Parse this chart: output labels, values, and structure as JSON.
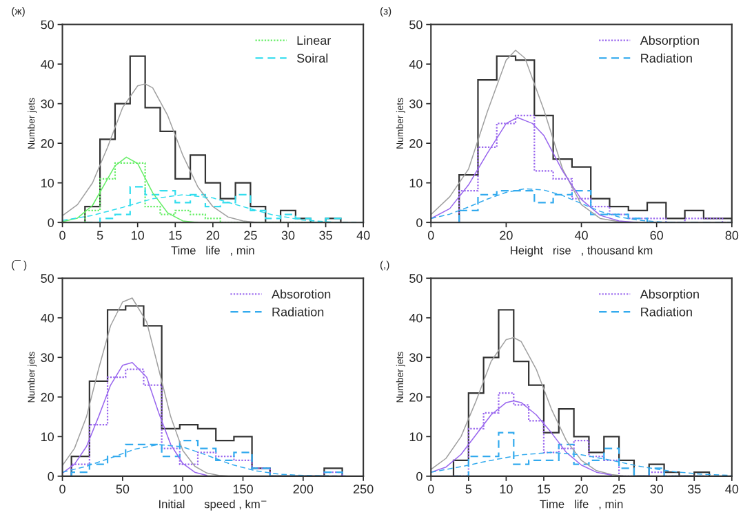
{
  "chart_data": [
    {
      "type": "histogram",
      "title": "(ж)",
      "xlabel": "Time   life   , min",
      "ylabel": "Number jets",
      "bins": [
        3,
        5,
        7,
        9,
        11,
        13,
        15,
        17,
        19,
        21,
        23,
        25,
        27,
        29,
        31,
        33,
        35,
        37
      ],
      "xlim": [
        0,
        40
      ],
      "ylim": [
        0,
        50
      ],
      "xticks": [
        0,
        5,
        10,
        15,
        20,
        25,
        30,
        35,
        40
      ],
      "yticks": [
        0,
        10,
        20,
        30,
        40,
        50
      ],
      "legend": "top right",
      "series": [
        {
          "color": "#333333",
          "line_style": "solid",
          "values": [
            4,
            21,
            30,
            42,
            29,
            23,
            11,
            17,
            10,
            6,
            10,
            4,
            0,
            3,
            1,
            0,
            1
          ]
        },
        {
          "name": "Linear",
          "color": "#66ee66",
          "line_style": "dotted",
          "values": [
            3,
            11,
            15,
            15,
            4,
            2,
            3,
            2,
            1,
            0,
            0,
            0,
            0,
            0,
            0,
            0,
            0
          ]
        },
        {
          "name": "Soiral",
          "color": "#33ddee",
          "line_style": "dashed",
          "values": [
            0,
            1,
            2,
            9,
            7,
            8,
            5,
            7,
            4,
            5,
            7,
            3,
            1,
            2,
            1,
            0,
            1
          ]
        },
        {
          "type": "line",
          "color": "#a0a0a0",
          "line_style": "solid",
          "x": [
            0,
            2,
            4,
            6,
            8,
            10,
            11,
            12,
            14,
            16,
            18,
            20,
            22,
            24,
            26
          ],
          "values": [
            1.7,
            4.5,
            10,
            19,
            29,
            34.5,
            35,
            34,
            27,
            17,
            9,
            4,
            1.4,
            0.4,
            0
          ]
        },
        {
          "type": "line",
          "color": "#66ee66",
          "line_style": "solid",
          "x": [
            0,
            2,
            4,
            6,
            7,
            8.5,
            10,
            12,
            14,
            16,
            18
          ],
          "values": [
            0.2,
            1.1,
            4.3,
            11,
            14.3,
            16.5,
            14.9,
            7.5,
            2.4,
            0.4,
            0
          ]
        },
        {
          "type": "line",
          "color": "#33ddee",
          "line_style": "dashed",
          "x": [
            0,
            4,
            8,
            12,
            16,
            20,
            24,
            28,
            32,
            36,
            40
          ],
          "values": [
            0.5,
            1.8,
            3.8,
            6,
            7,
            6.2,
            4,
            1.9,
            0.6,
            0.1,
            0
          ]
        }
      ]
    },
    {
      "type": "histogram",
      "title": "(з)",
      "xlabel": "Height   rise   , thousand km",
      "ylabel": "Number jets",
      "bins": [
        7.5,
        12.5,
        17.5,
        22.5,
        27.5,
        32.5,
        37.5,
        42.5,
        47.5,
        52.5,
        57.5,
        62.5,
        67.5,
        72.5,
        77.5,
        80
      ],
      "xlim": [
        0,
        80
      ],
      "ylim": [
        0,
        50
      ],
      "xticks": [
        0,
        20,
        40,
        60,
        80
      ],
      "yticks": [
        0,
        10,
        20,
        30,
        40,
        50
      ],
      "legend": "top right",
      "series": [
        {
          "color": "#333333",
          "line_style": "solid",
          "values": [
            12,
            36,
            42,
            41,
            27,
            16,
            14,
            6,
            4,
            3,
            5,
            1,
            3,
            1,
            1
          ]
        },
        {
          "name": "Absorption",
          "color": "#9966ee",
          "line_style": "dotted",
          "values": [
            8,
            19,
            25,
            27,
            13,
            11,
            6,
            4,
            2,
            1,
            1,
            0,
            1,
            1,
            0
          ]
        },
        {
          "name": "Radiation",
          "color": "#33aaee",
          "line_style": "dashed",
          "values": [
            3,
            7,
            8,
            8,
            5,
            7,
            8,
            2,
            2,
            1,
            0,
            0,
            0,
            0,
            0
          ]
        },
        {
          "type": "line",
          "color": "#a0a0a0",
          "line_style": "solid",
          "x": [
            0,
            5,
            10,
            15,
            20,
            22.5,
            25,
            30,
            35,
            40,
            45,
            50,
            55
          ],
          "values": [
            2,
            6.5,
            13.5,
            28,
            41,
            43.5,
            41.5,
            28.5,
            13.5,
            4.5,
            1,
            0.2,
            0
          ]
        },
        {
          "type": "line",
          "color": "#9966ee",
          "line_style": "solid",
          "x": [
            0,
            5,
            10,
            15,
            20,
            23,
            27,
            30,
            35,
            40,
            45,
            50,
            55
          ],
          "values": [
            1,
            3.5,
            9.5,
            17.5,
            25,
            26.5,
            25,
            22,
            13,
            5.8,
            1.8,
            0.4,
            0
          ]
        },
        {
          "type": "line",
          "color": "#33aaee",
          "line_style": "dashed",
          "x": [
            0,
            5,
            10,
            15,
            20,
            25,
            30,
            35,
            40,
            45,
            50,
            55,
            60,
            65
          ],
          "values": [
            1,
            2.1,
            3.9,
            5.9,
            7.6,
            8.5,
            8.2,
            6.8,
            4.8,
            2.8,
            1.4,
            0.6,
            0.2,
            0
          ]
        }
      ]
    },
    {
      "type": "histogram",
      "title": "(¯ )",
      "xlabel": "Initial      speed , km$^{−}$",
      "ylabel": "Number jets",
      "bins": [
        7.5,
        22.5,
        37.5,
        52.5,
        67.5,
        82.5,
        97.5,
        112.5,
        127.5,
        142.5,
        157.5,
        172.5,
        187.5,
        202.5,
        217.5,
        232.5
      ],
      "xlim": [
        0,
        250
      ],
      "ylim": [
        0,
        50
      ],
      "xticks": [
        0,
        50,
        100,
        150,
        200,
        250
      ],
      "yticks": [
        0,
        10,
        20,
        30,
        40,
        50
      ],
      "legend": "top right",
      "series": [
        {
          "color": "#333333",
          "line_style": "solid",
          "values": [
            5,
            24,
            42,
            43,
            38,
            12,
            13,
            12,
            9,
            10,
            2,
            0,
            0,
            0,
            2
          ]
        },
        {
          "name": "Absorotion",
          "color": "#9966ee",
          "line_style": "dotted",
          "values": [
            3,
            13,
            25,
            27,
            23,
            7,
            3,
            6,
            5,
            4,
            2,
            0,
            0,
            0,
            1
          ]
        },
        {
          "name": "Radiation",
          "color": "#33aaee",
          "line_style": "dashed",
          "values": [
            1,
            3,
            5,
            8,
            8,
            5,
            9,
            7,
            4,
            6,
            2,
            0,
            0,
            0,
            1
          ]
        },
        {
          "type": "line",
          "color": "#a0a0a0",
          "line_style": "solid",
          "x": [
            0,
            10,
            20,
            30,
            40,
            50,
            58,
            70,
            80,
            90,
            100,
            110,
            120,
            130,
            140
          ],
          "values": [
            2.7,
            7,
            15,
            27,
            38,
            44,
            45,
            39,
            27,
            15,
            6.5,
            2.5,
            0.8,
            0.2,
            0
          ]
        },
        {
          "type": "line",
          "color": "#9966ee",
          "line_style": "solid",
          "x": [
            0,
            10,
            20,
            30,
            40,
            50,
            58,
            70,
            80,
            90,
            100,
            110,
            120
          ],
          "values": [
            0.8,
            3,
            7.5,
            15,
            23,
            28,
            28.7,
            25,
            16,
            8,
            3.2,
            1,
            0.2
          ]
        },
        {
          "type": "line",
          "color": "#33aaee",
          "line_style": "dashed",
          "x": [
            0,
            20,
            40,
            60,
            80,
            100,
            120,
            140,
            160,
            180,
            200,
            220,
            250
          ],
          "values": [
            1,
            2.5,
            4.6,
            6.8,
            8,
            7.4,
            5.3,
            3,
            1.4,
            0.5,
            0.2,
            0.1,
            0
          ]
        }
      ]
    },
    {
      "type": "histogram",
      "title": "(,)",
      "xlabel": "Time   life   , min",
      "ylabel": "Number jets",
      "bins": [
        3,
        5,
        7,
        9,
        11,
        13,
        15,
        17,
        19,
        21,
        23,
        25,
        27,
        29,
        31,
        33,
        35,
        37
      ],
      "xlim": [
        0,
        40
      ],
      "ylim": [
        0,
        50
      ],
      "xticks": [
        0,
        5,
        10,
        15,
        20,
        25,
        30,
        35,
        40
      ],
      "yticks": [
        0,
        10,
        20,
        30,
        40,
        50
      ],
      "legend": "top right",
      "series": [
        {
          "color": "#333333",
          "line_style": "solid",
          "values": [
            4,
            21,
            30,
            42,
            29,
            23,
            11,
            17,
            10,
            6,
            10,
            4,
            0,
            3,
            1,
            0,
            1
          ]
        },
        {
          "name": "Absorption",
          "color": "#9966ee",
          "line_style": "dotted",
          "values": [
            0,
            12,
            16,
            21,
            18,
            14,
            6,
            7,
            9,
            5,
            4,
            0,
            0,
            1,
            0,
            0,
            0
          ]
        },
        {
          "name": "Radiation",
          "color": "#33aaee",
          "line_style": "dashed",
          "values": [
            0,
            5,
            5,
            11,
            3,
            4,
            4,
            8,
            3,
            4,
            7,
            2,
            0,
            2,
            0,
            0,
            0
          ]
        },
        {
          "type": "line",
          "color": "#a0a0a0",
          "line_style": "solid",
          "x": [
            0,
            2,
            4,
            6,
            8,
            10,
            11,
            12,
            14,
            16,
            18,
            20,
            22,
            24,
            26
          ],
          "values": [
            1.7,
            4.5,
            10,
            19,
            29,
            34.5,
            35,
            34,
            27,
            17,
            9,
            4,
            1.4,
            0.4,
            0
          ]
        },
        {
          "type": "line",
          "color": "#9966ee",
          "line_style": "solid",
          "x": [
            0,
            2,
            4,
            6,
            8,
            10,
            11,
            12,
            14,
            16,
            18,
            20,
            22,
            24
          ],
          "values": [
            1,
            2.3,
            5.5,
            10.5,
            15.5,
            18.6,
            19,
            18.6,
            15.5,
            11,
            6,
            2.8,
            1,
            0.3
          ]
        },
        {
          "type": "line",
          "color": "#33aaee",
          "line_style": "dashed",
          "x": [
            0,
            4,
            8,
            12,
            16,
            20,
            24,
            28,
            32,
            36,
            40
          ],
          "values": [
            1,
            2.4,
            4,
            5.4,
            6,
            5.4,
            4,
            2.4,
            1.2,
            0.5,
            0.2
          ]
        }
      ]
    }
  ]
}
